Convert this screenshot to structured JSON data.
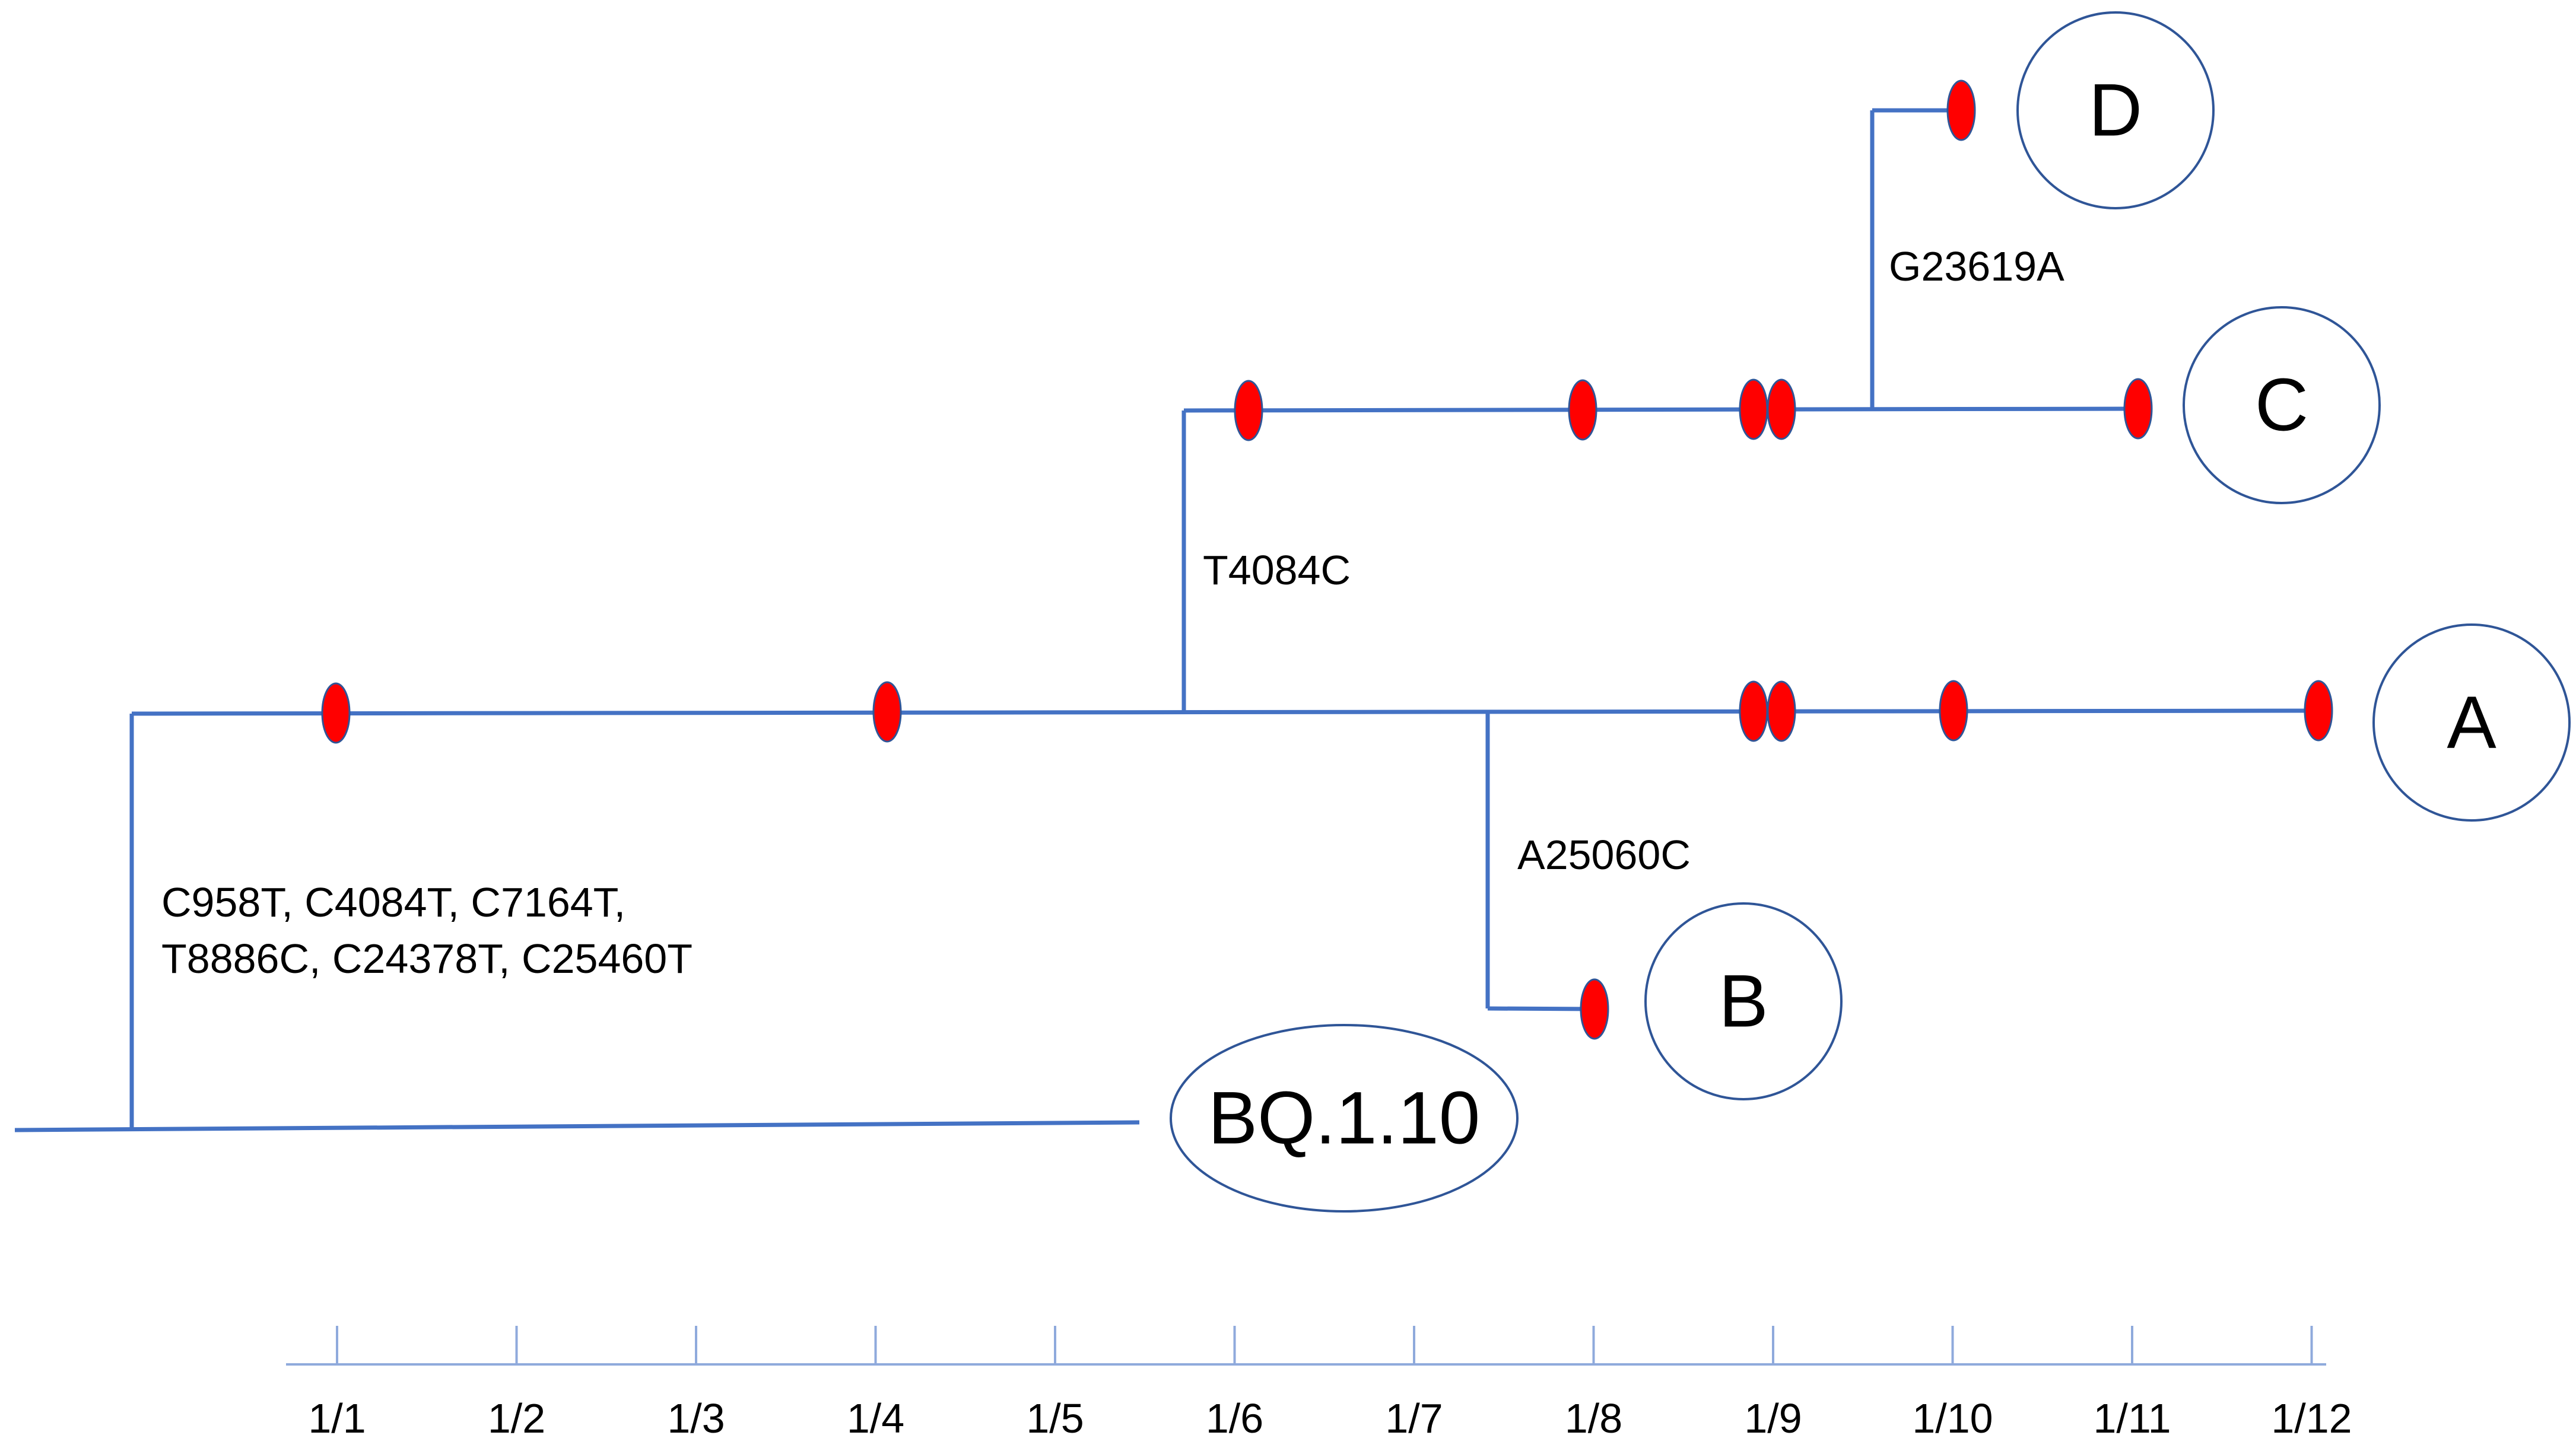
{
  "colors": {
    "branch": "#4472c4",
    "axis": "#8faadc",
    "mutation_fill": "#ff0000",
    "mutation_stroke": "#2f5597",
    "node_stroke": "#2f5597"
  },
  "nodes": {
    "root": "BQ.1.10",
    "a": "A",
    "b": "B",
    "c": "C",
    "d": "D"
  },
  "mutations": {
    "root_line1": "C958T, C4084T, C7164T,",
    "root_line2": "T8886C, C24378T, C25460T",
    "branch_c": "T4084C",
    "branch_b": "A25060C",
    "branch_d": "G23619A"
  },
  "axis": {
    "ticks": [
      "1/1",
      "1/2",
      "1/3",
      "1/4",
      "1/5",
      "1/6",
      "1/7",
      "1/8",
      "1/9",
      "1/10",
      "1/11",
      "1/12"
    ]
  }
}
